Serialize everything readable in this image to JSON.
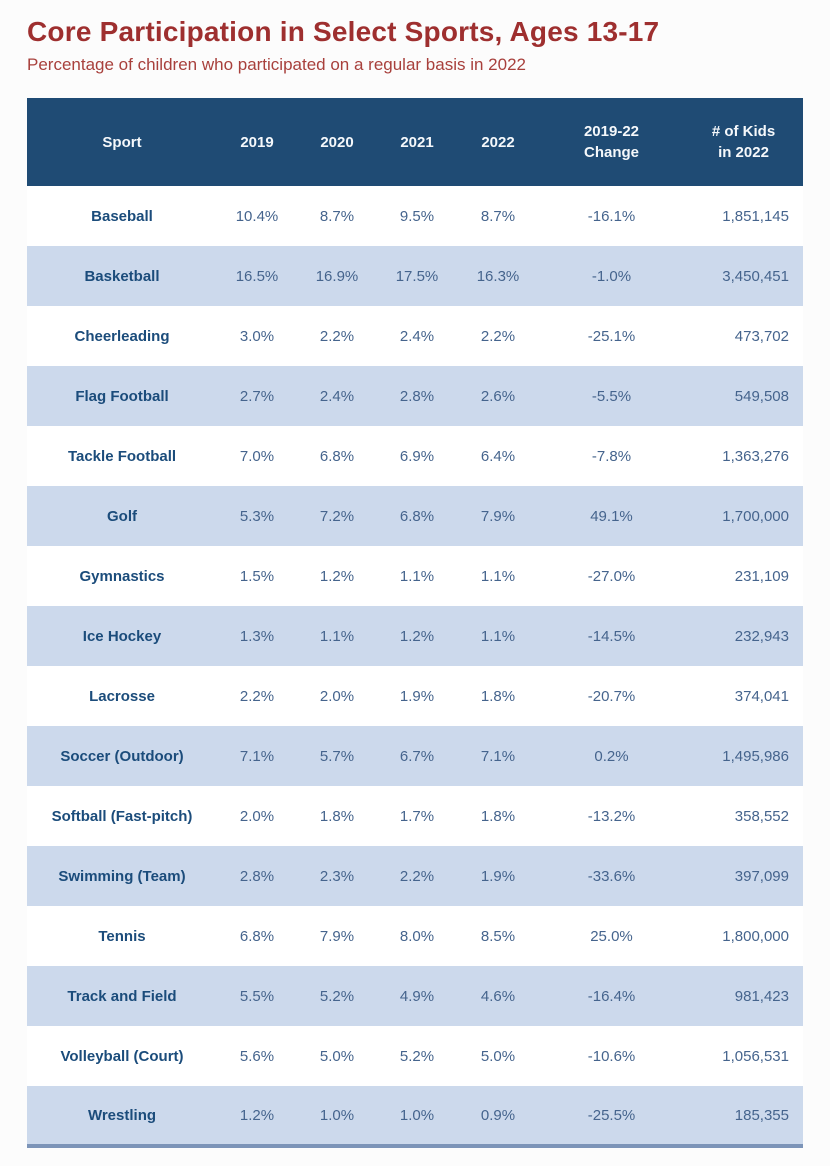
{
  "page": {
    "title": "Core Participation in Select Sports, Ages 13-17",
    "subtitle": "Percentage of children who participated on a regular basis in 2022"
  },
  "colors": {
    "title_red": "#9e2f2f",
    "subtitle_red": "#a8403c",
    "header_bg": "#1f4b74",
    "header_text": "#f5f8fb",
    "row_alt_bg": "#ccd9ec",
    "row_bg": "#ffffff",
    "sport_text": "#1b4c7b",
    "value_text": "#45648d",
    "bottom_border": "#7c94b8"
  },
  "table": {
    "headers": [
      "Sport",
      "2019",
      "2020",
      "2021",
      "2022",
      "2019-22\nChange",
      "# of Kids\nin 2022"
    ]
  },
  "chart_data": {
    "type": "table",
    "title": "Core Participation in Select Sports, Ages 13-17",
    "subtitle": "Percentage of children who participated on a regular basis in 2022",
    "columns": [
      "Sport",
      "2019",
      "2020",
      "2021",
      "2022",
      "2019-22 Change",
      "# of Kids in 2022"
    ],
    "rows": [
      [
        "Baseball",
        "10.4%",
        "8.7%",
        "9.5%",
        "8.7%",
        "-16.1%",
        "1,851,145"
      ],
      [
        "Basketball",
        "16.5%",
        "16.9%",
        "17.5%",
        "16.3%",
        "-1.0%",
        "3,450,451"
      ],
      [
        "Cheerleading",
        "3.0%",
        "2.2%",
        "2.4%",
        "2.2%",
        "-25.1%",
        "473,702"
      ],
      [
        "Flag Football",
        "2.7%",
        "2.4%",
        "2.8%",
        "2.6%",
        "-5.5%",
        "549,508"
      ],
      [
        "Tackle Football",
        "7.0%",
        "6.8%",
        "6.9%",
        "6.4%",
        "-7.8%",
        "1,363,276"
      ],
      [
        "Golf",
        "5.3%",
        "7.2%",
        "6.8%",
        "7.9%",
        "49.1%",
        "1,700,000"
      ],
      [
        "Gymnastics",
        "1.5%",
        "1.2%",
        "1.1%",
        "1.1%",
        "-27.0%",
        "231,109"
      ],
      [
        "Ice Hockey",
        "1.3%",
        "1.1%",
        "1.2%",
        "1.1%",
        "-14.5%",
        "232,943"
      ],
      [
        "Lacrosse",
        "2.2%",
        "2.0%",
        "1.9%",
        "1.8%",
        "-20.7%",
        "374,041"
      ],
      [
        "Soccer (Outdoor)",
        "7.1%",
        "5.7%",
        "6.7%",
        "7.1%",
        "0.2%",
        "1,495,986"
      ],
      [
        "Softball (Fast-pitch)",
        "2.0%",
        "1.8%",
        "1.7%",
        "1.8%",
        "-13.2%",
        "358,552"
      ],
      [
        "Swimming (Team)",
        "2.8%",
        "2.3%",
        "2.2%",
        "1.9%",
        "-33.6%",
        "397,099"
      ],
      [
        "Tennis",
        "6.8%",
        "7.9%",
        "8.0%",
        "8.5%",
        "25.0%",
        "1,800,000"
      ],
      [
        "Track and Field",
        "5.5%",
        "5.2%",
        "4.9%",
        "4.6%",
        "-16.4%",
        "981,423"
      ],
      [
        "Volleyball (Court)",
        "5.6%",
        "5.0%",
        "5.2%",
        "5.0%",
        "-10.6%",
        "1,056,531"
      ],
      [
        "Wrestling",
        "1.2%",
        "1.0%",
        "1.0%",
        "0.9%",
        "-25.5%",
        "185,355"
      ]
    ]
  }
}
